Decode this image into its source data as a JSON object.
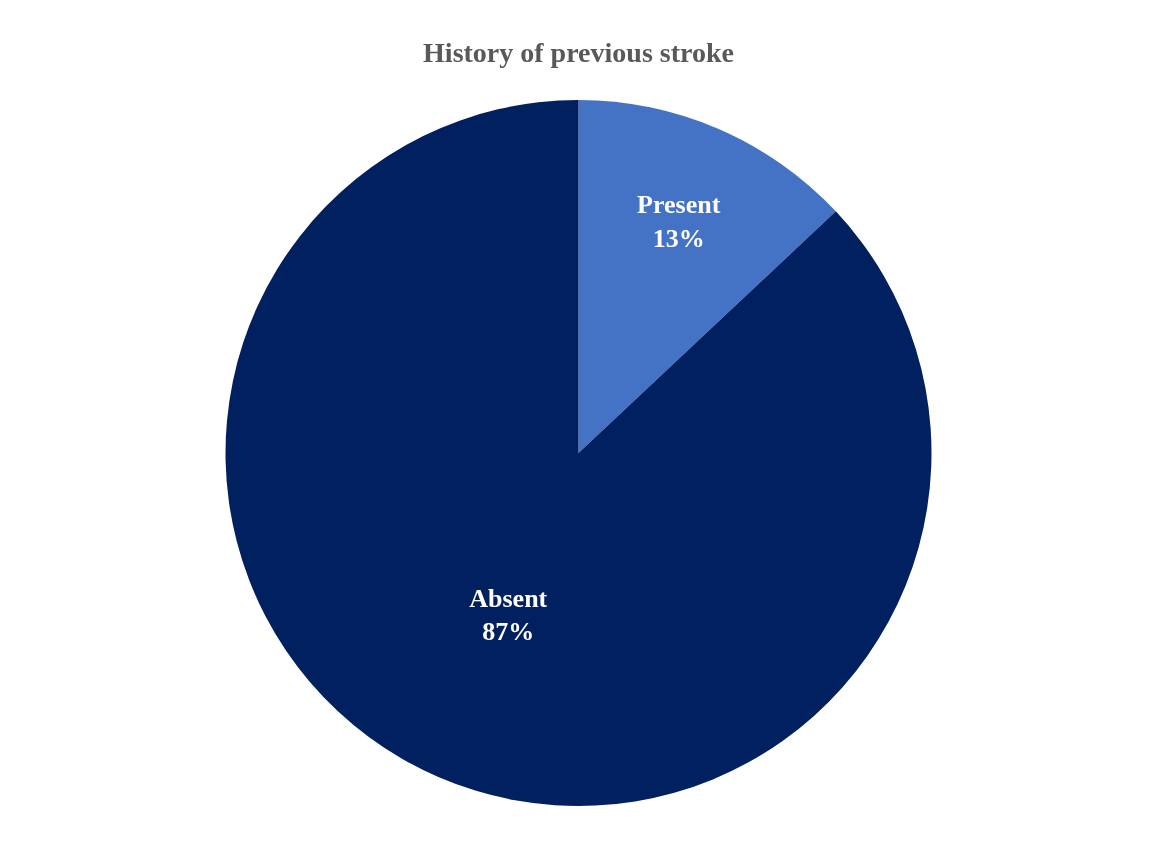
{
  "chart_data": {
    "type": "pie",
    "title": "History of previous stroke",
    "categories": [
      "Present",
      "Absent"
    ],
    "values": [
      13,
      87
    ],
    "value_labels": [
      "13%",
      "87%"
    ],
    "colors": [
      "#4472c4",
      "#002060"
    ],
    "legend": false
  }
}
